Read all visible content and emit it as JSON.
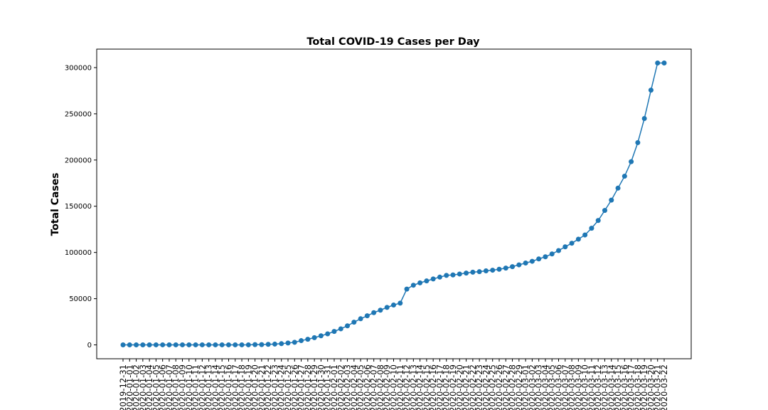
{
  "colors": {
    "series": "#1f77b4",
    "axes": "#000000",
    "background": "#ffffff"
  },
  "chart_data": {
    "type": "line",
    "title": "Total COVID-19 Cases per Day",
    "xlabel": "",
    "ylabel": "Total Cases",
    "ylim": [
      -15000,
      320000
    ],
    "yticks": [
      0,
      50000,
      100000,
      150000,
      200000,
      250000,
      300000
    ],
    "ytick_labels": [
      "0",
      "50000",
      "100000",
      "150000",
      "200000",
      "250000",
      "300000"
    ],
    "grid": false,
    "legend": "none",
    "markers": true,
    "x": [
      "2019-12-31",
      "2020-01-01",
      "2020-01-02",
      "2020-01-03",
      "2020-01-04",
      "2020-01-05",
      "2020-01-06",
      "2020-01-07",
      "2020-01-08",
      "2020-01-09",
      "2020-01-10",
      "2020-01-11",
      "2020-01-12",
      "2020-01-13",
      "2020-01-14",
      "2020-01-15",
      "2020-01-16",
      "2020-01-17",
      "2020-01-18",
      "2020-01-19",
      "2020-01-20",
      "2020-01-21",
      "2020-01-22",
      "2020-01-23",
      "2020-01-24",
      "2020-01-25",
      "2020-01-26",
      "2020-01-27",
      "2020-01-28",
      "2020-01-29",
      "2020-01-30",
      "2020-01-31",
      "2020-02-01",
      "2020-02-02",
      "2020-02-03",
      "2020-02-04",
      "2020-02-05",
      "2020-02-06",
      "2020-02-07",
      "2020-02-08",
      "2020-02-09",
      "2020-02-10",
      "2020-02-11",
      "2020-02-12",
      "2020-02-13",
      "2020-02-14",
      "2020-02-15",
      "2020-02-16",
      "2020-02-17",
      "2020-02-18",
      "2020-02-19",
      "2020-02-20",
      "2020-02-21",
      "2020-02-22",
      "2020-02-23",
      "2020-02-24",
      "2020-02-25",
      "2020-02-26",
      "2020-02-27",
      "2020-02-28",
      "2020-02-29",
      "2020-03-01",
      "2020-03-02",
      "2020-03-03",
      "2020-03-04",
      "2020-03-05",
      "2020-03-06",
      "2020-03-07",
      "2020-03-08",
      "2020-03-09",
      "2020-03-10",
      "2020-03-11",
      "2020-03-12",
      "2020-03-13",
      "2020-03-14",
      "2020-03-15",
      "2020-03-16",
      "2020-03-17",
      "2020-03-18",
      "2020-03-19",
      "2020-03-20",
      "2020-03-21",
      "2020-03-22"
    ],
    "series": [
      {
        "values": [
          27,
          27,
          27,
          44,
          44,
          59,
          59,
          59,
          59,
          59,
          59,
          59,
          59,
          59,
          59,
          59,
          59,
          59,
          59,
          59,
          282,
          314,
          581,
          846,
          1320,
          2014,
          2798,
          4593,
          6065,
          7818,
          9826,
          11953,
          14557,
          17391,
          20630,
          24554,
          28276,
          31481,
          34886,
          37558,
          40554,
          43103,
          45171,
          60380,
          64543,
          67100,
          69197,
          71330,
          73332,
          75184,
          75700,
          76677,
          77673,
          78651,
          79205,
          80087,
          80828,
          81820,
          83112,
          84615,
          86604,
          88585,
          90443,
          93016,
          95314,
          98425,
          102050,
          106099,
          109991,
          114381,
          118948,
          126214,
          134576,
          145483,
          156653,
          169593,
          182490,
          198238,
          218822,
          244933,
          275597,
          304979,
          304979
        ]
      }
    ]
  }
}
